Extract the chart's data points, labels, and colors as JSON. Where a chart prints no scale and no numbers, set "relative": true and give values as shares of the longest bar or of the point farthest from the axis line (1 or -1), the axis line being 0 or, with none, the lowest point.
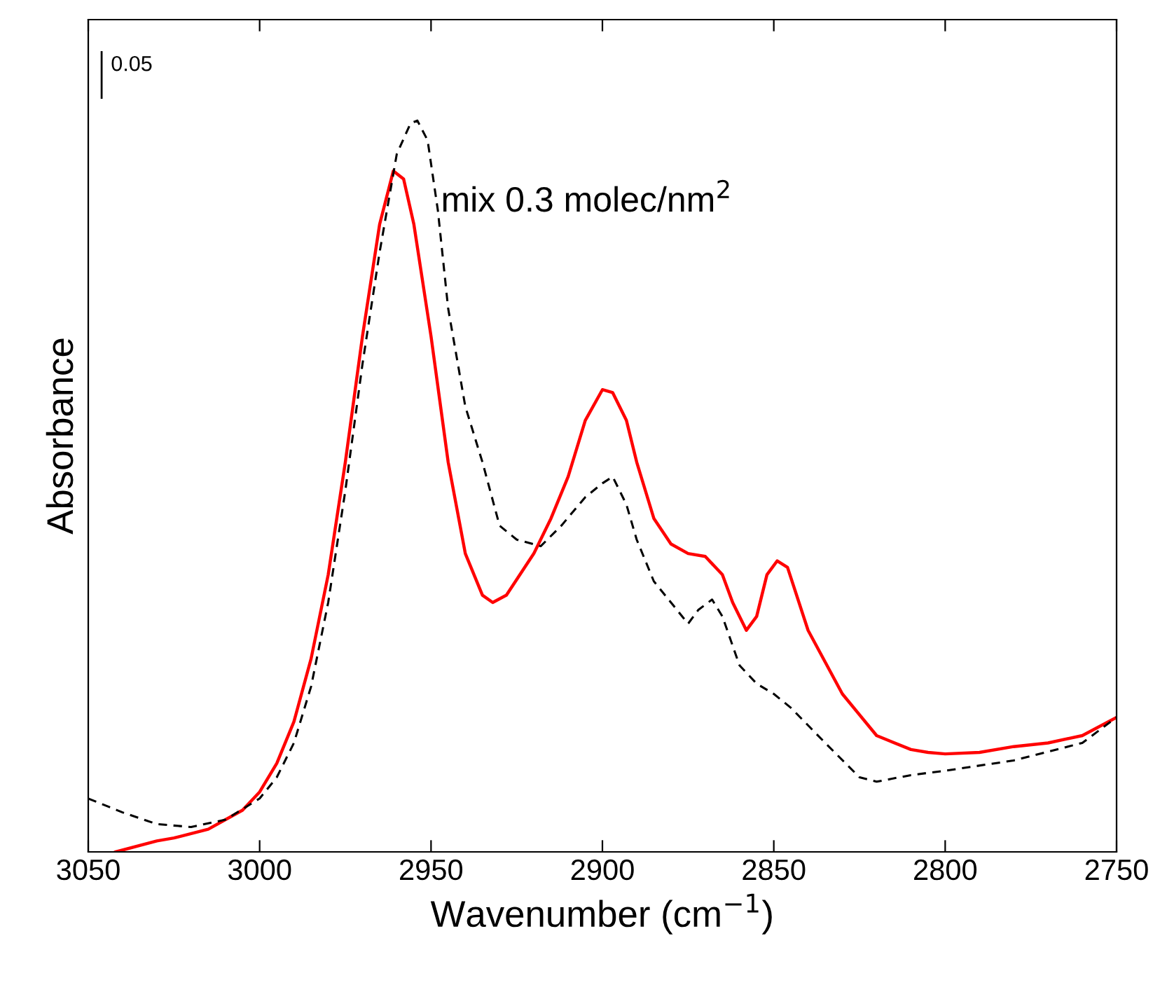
{
  "chart_data": {
    "type": "line",
    "relative": true,
    "xlabel": "Wavenumber (cm$^{−1}$)",
    "ylabel": "Absorbance",
    "xlim": [
      3050,
      2750
    ],
    "xticks": [
      3050,
      3000,
      2950,
      2900,
      2850,
      2800,
      2750
    ],
    "grid": false,
    "legend": false,
    "annotations": [
      "0.05",
      "mix 0.3 molec/nm$^{2}$"
    ],
    "series": [
      {
        "color": "#ff0000",
        "line_style": "solid",
        "x": [
          3042,
          3030,
          3025,
          3015,
          3005,
          3000,
          2995,
          2990,
          2985,
          2980,
          2975,
          2970,
          2965,
          2961,
          2958,
          2955,
          2950,
          2945,
          2940,
          2935,
          2932,
          2928,
          2920,
          2915,
          2910,
          2905,
          2900,
          2897,
          2893,
          2890,
          2885,
          2880,
          2875,
          2870,
          2865,
          2862,
          2858,
          2855,
          2852,
          2849,
          2846,
          2840,
          2830,
          2820,
          2810,
          2805,
          2800,
          2790,
          2780,
          2770,
          2760,
          2750
        ],
        "values": [
          0,
          0.015,
          0.019,
          0.031,
          0.057,
          0.082,
          0.121,
          0.178,
          0.264,
          0.379,
          0.533,
          0.705,
          0.858,
          0.931,
          0.92,
          0.858,
          0.705,
          0.533,
          0.408,
          0.351,
          0.341,
          0.351,
          0.408,
          0.456,
          0.513,
          0.59,
          0.632,
          0.628,
          0.59,
          0.533,
          0.456,
          0.421,
          0.408,
          0.404,
          0.379,
          0.341,
          0.303,
          0.322,
          0.379,
          0.398,
          0.389,
          0.303,
          0.216,
          0.159,
          0.14,
          0.136,
          0.134,
          0.136,
          0.144,
          0.149,
          0.159,
          0.184
        ]
      },
      {
        "color": "#000000",
        "line_style": "dashed",
        "x": [
          3050,
          3040,
          3030,
          3020,
          3010,
          3000,
          2995,
          2990,
          2985,
          2980,
          2975,
          2970,
          2965,
          2960,
          2956,
          2954,
          2951,
          2948,
          2945,
          2940,
          2935,
          2930,
          2925,
          2918,
          2912,
          2905,
          2900,
          2897,
          2893,
          2890,
          2885,
          2880,
          2875,
          2872,
          2868,
          2865,
          2860,
          2855,
          2850,
          2845,
          2835,
          2825,
          2820,
          2810,
          2800,
          2780,
          2760,
          2750
        ],
        "values": [
          0.073,
          0.054,
          0.038,
          0.034,
          0.044,
          0.073,
          0.102,
          0.149,
          0.226,
          0.341,
          0.494,
          0.667,
          0.82,
          0.954,
          0.996,
          1,
          0.973,
          0.877,
          0.743,
          0.609,
          0.533,
          0.446,
          0.427,
          0.418,
          0.446,
          0.485,
          0.504,
          0.513,
          0.475,
          0.427,
          0.37,
          0.341,
          0.312,
          0.331,
          0.345,
          0.322,
          0.255,
          0.23,
          0.216,
          0.197,
          0.149,
          0.102,
          0.096,
          0.105,
          0.111,
          0.125,
          0.149,
          0.184
        ]
      }
    ]
  }
}
